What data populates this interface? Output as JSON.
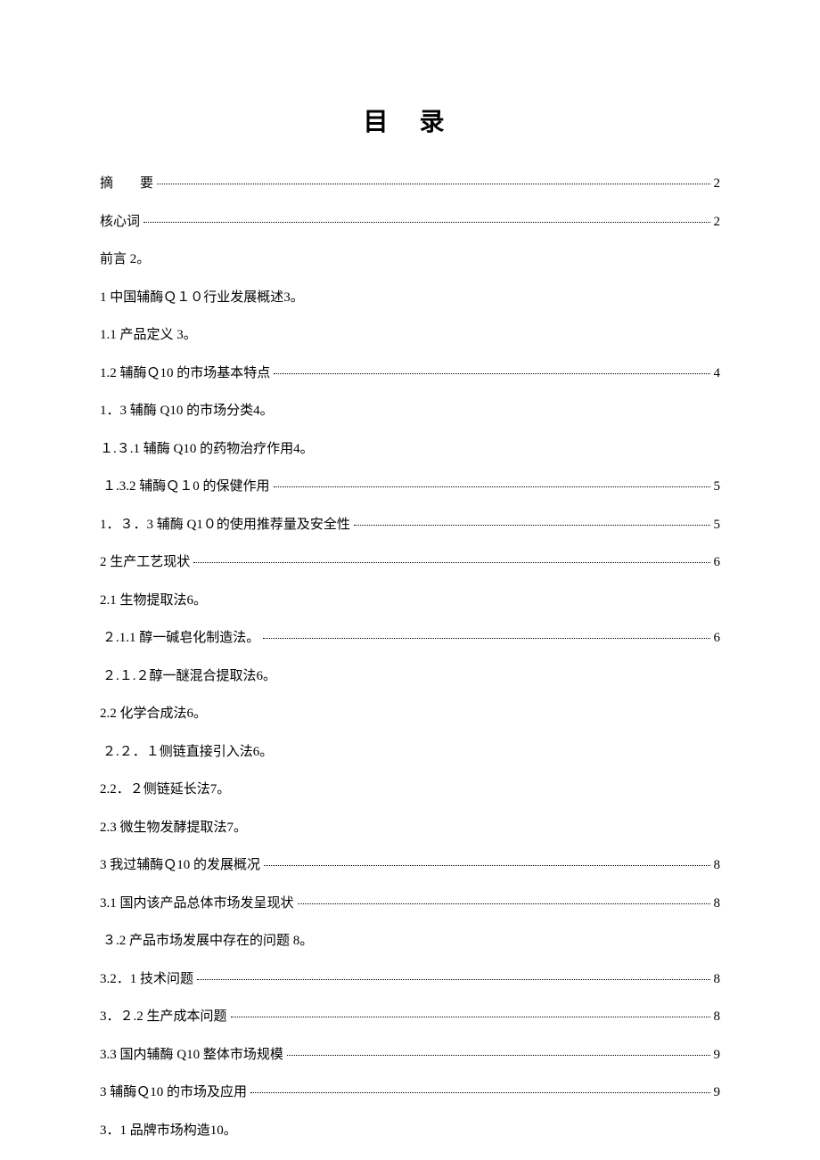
{
  "title": "目 录",
  "entries": [
    {
      "label": "摘　　要",
      "page": " 2",
      "hasDots": true,
      "indent": 0
    },
    {
      "label": "核心词",
      "page": "2",
      "hasDots": true,
      "indent": 0
    },
    {
      "label": "前言 2。",
      "page": "",
      "hasDots": false,
      "indent": 0
    },
    {
      "label": "1 中国辅酶Ｑ１０行业发展概述3。",
      "page": "",
      "hasDots": false,
      "indent": 0
    },
    {
      "label": "1.1 产品定义 3。",
      "page": "",
      "hasDots": false,
      "indent": 0
    },
    {
      "label": "1.2 辅酶Ｑ10 的市场基本特点",
      "page": "4",
      "hasDots": true,
      "indent": 0
    },
    {
      "label": "1．3 辅酶 Q10 的市场分类4。",
      "page": "",
      "hasDots": false,
      "indent": 0
    },
    {
      "label": "１.３.1 辅酶 Q10 的药物治疗作用4。",
      "page": "",
      "hasDots": false,
      "indent": 0
    },
    {
      "label": "１.3.2 辅酶Ｑ１0 的保健作用",
      "page": " 5",
      "hasDots": true,
      "indent": 1
    },
    {
      "label": "1．３．3 辅酶 Q1０的使用推荐量及安全性",
      "page": "5",
      "hasDots": true,
      "indent": 0
    },
    {
      "label": "2 生产工艺现状",
      "page": " 6",
      "hasDots": true,
      "indent": 0
    },
    {
      "label": "2.1 生物提取法6。",
      "page": "",
      "hasDots": false,
      "indent": 0
    },
    {
      "label": "２.1.1 醇一碱皂化制造法。",
      "page": "6",
      "hasDots": true,
      "indent": 1
    },
    {
      "label": "２.１.２醇一醚混合提取法6。",
      "page": "",
      "hasDots": false,
      "indent": 1
    },
    {
      "label": "2.2 化学合成法6。",
      "page": "",
      "hasDots": false,
      "indent": 0
    },
    {
      "label": "２.２．１侧链直接引入法6。",
      "page": "",
      "hasDots": false,
      "indent": 1
    },
    {
      "label": "2.2．２侧链延长法7。",
      "page": "",
      "hasDots": false,
      "indent": 0
    },
    {
      "label": "2.3 微生物发酵提取法7。",
      "page": "",
      "hasDots": false,
      "indent": 0
    },
    {
      "label": "3 我过辅酶Ｑ10 的发展概况",
      "page": " 8",
      "hasDots": true,
      "indent": 0
    },
    {
      "label": "3.1 国内该产品总体市场发呈现状",
      "page": " 8",
      "hasDots": true,
      "indent": 0
    },
    {
      "label": "３.2 产品市场发展中存在的问题 8。",
      "page": "",
      "hasDots": false,
      "indent": 1
    },
    {
      "label": "3.2．1 技术问题",
      "page": "8",
      "hasDots": true,
      "indent": 0
    },
    {
      "label": "3．２.2 生产成本问题",
      "page": "8",
      "hasDots": true,
      "indent": 0
    },
    {
      "label": "3.3 国内辅酶 Q10  整体市场规模",
      "page": " 9",
      "hasDots": true,
      "indent": 0
    },
    {
      "label": "3 辅酶Ｑ10 的市场及应用",
      "page": "9",
      "hasDots": true,
      "indent": 0
    },
    {
      "label": "3．1 品牌市场构造10。",
      "page": "",
      "hasDots": false,
      "indent": 0
    }
  ],
  "style": {
    "pageWidth": 920,
    "pageHeight": 1302,
    "backgroundColor": "#ffffff",
    "textColor": "#000000",
    "titleFontSize": 28,
    "entryFontSize": 15,
    "fontFamily": "SimSun"
  }
}
